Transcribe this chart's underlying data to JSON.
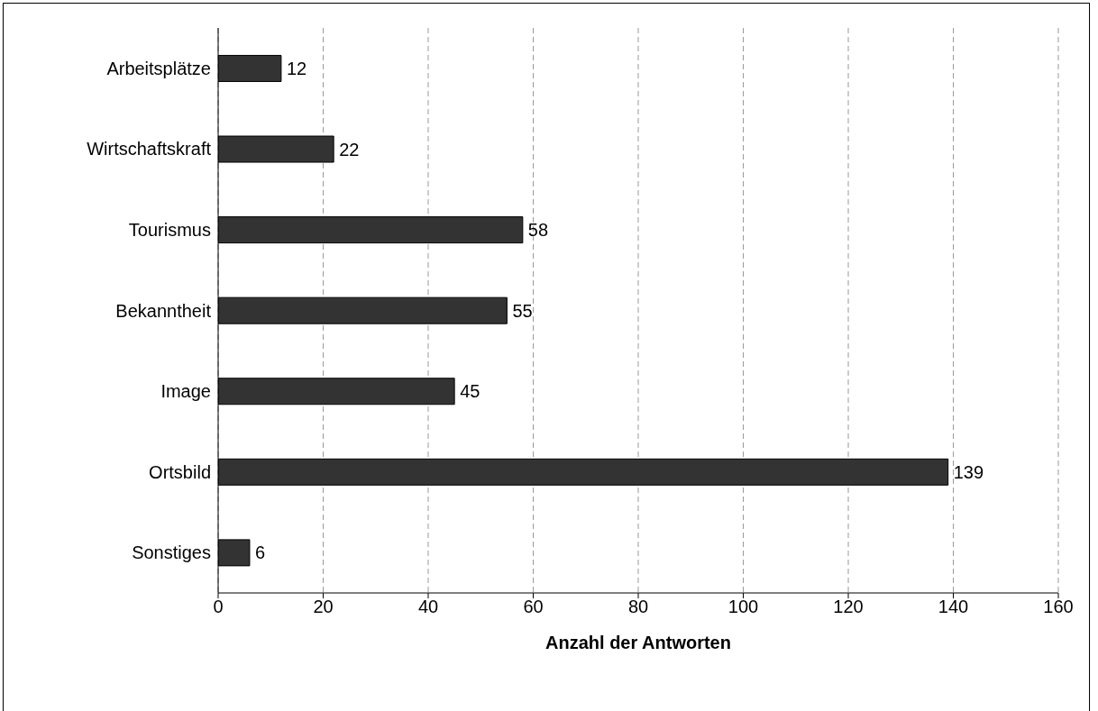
{
  "chart_data": {
    "type": "bar",
    "orientation": "horizontal",
    "xlabel": "Anzahl der Antworten",
    "categories": [
      "Arbeitsplätze",
      "Wirtschaftskraft",
      "Tourismus",
      "Bekanntheit",
      "Image",
      "Ortsbild",
      "Sonstiges"
    ],
    "values": [
      12,
      22,
      58,
      55,
      45,
      139,
      6
    ],
    "color": "#333333",
    "xlim": [
      0,
      160
    ],
    "xticks": [
      0,
      20,
      40,
      60,
      80,
      100,
      120,
      140,
      160
    ],
    "grid": "x",
    "data_labels": true
  }
}
